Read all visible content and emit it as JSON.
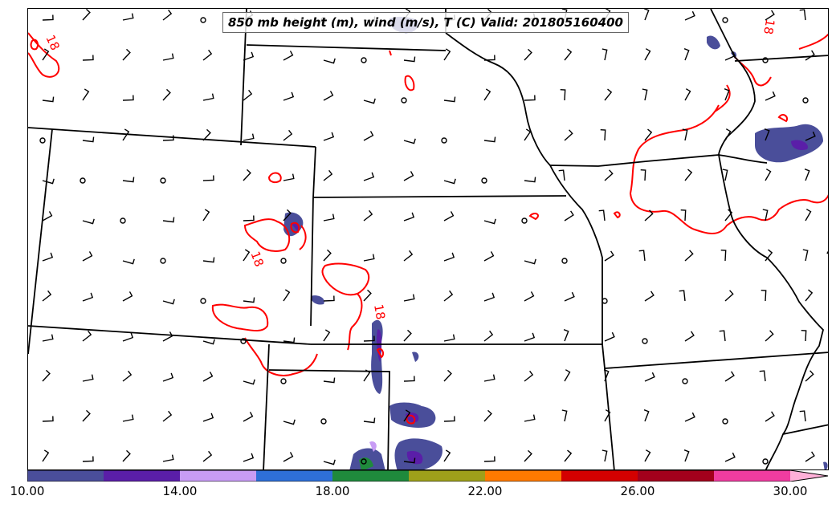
{
  "title": "850 mb height (m), wind (m/s), T (C) Valid: 201805160400",
  "contour_labels": [
    "18",
    "18",
    "18",
    "18"
  ],
  "colorbar": {
    "ticks": [
      "10.00",
      "14.00",
      "18.00",
      "22.00",
      "26.00",
      "30.00"
    ],
    "colors": [
      "#4a4e9a",
      "#5a1ea8",
      "#c89cf5",
      "#2e6fd8",
      "#1f8a3c",
      "#9ea01a",
      "#ff7a00",
      "#d40000",
      "#a3001c",
      "#f03ca0",
      "#ffb0d8"
    ],
    "extend": "max"
  },
  "colors": {
    "contour": "#ff0000",
    "boundary": "#000000"
  }
}
